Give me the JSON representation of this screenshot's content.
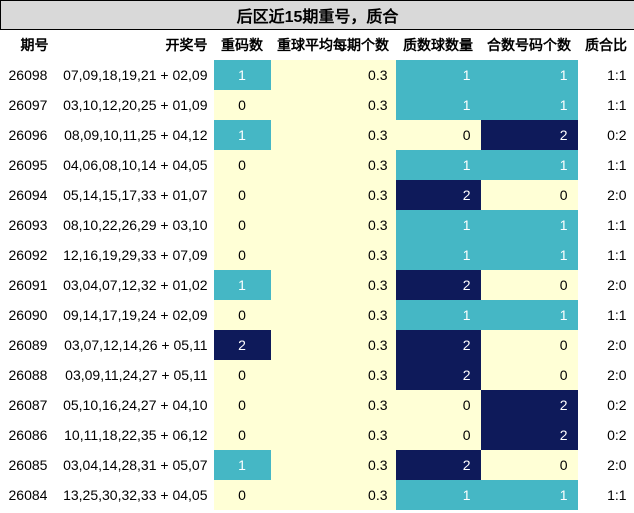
{
  "title": "后区近15期重号，质合",
  "headers": {
    "issue": "期号",
    "draw": "开奖号",
    "repeat": "重码数",
    "avg": "重球平均每期个数",
    "prime": "质数球数量",
    "composite": "合数号码个数",
    "ratio": "质合比"
  },
  "colors": {
    "teal": "#45b7c5",
    "navy": "#0e1a5a",
    "yellow": "#ffffd6",
    "header_gray": "#d9d9d9"
  },
  "rows": [
    {
      "issue": "26098",
      "draw": "07,09,18,19,21 + 02,09",
      "repeat": "1",
      "avg": "0.3",
      "prime": "1",
      "composite": "1",
      "ratio": "1:1"
    },
    {
      "issue": "26097",
      "draw": "03,10,12,20,25 + 01,09",
      "repeat": "0",
      "avg": "0.3",
      "prime": "1",
      "composite": "1",
      "ratio": "1:1"
    },
    {
      "issue": "26096",
      "draw": "08,09,10,11,25 + 04,12",
      "repeat": "1",
      "avg": "0.3",
      "prime": "0",
      "composite": "2",
      "ratio": "0:2"
    },
    {
      "issue": "26095",
      "draw": "04,06,08,10,14 + 04,05",
      "repeat": "0",
      "avg": "0.3",
      "prime": "1",
      "composite": "1",
      "ratio": "1:1"
    },
    {
      "issue": "26094",
      "draw": "05,14,15,17,33 + 01,07",
      "repeat": "0",
      "avg": "0.3",
      "prime": "2",
      "composite": "0",
      "ratio": "2:0"
    },
    {
      "issue": "26093",
      "draw": "08,10,22,26,29 + 03,10",
      "repeat": "0",
      "avg": "0.3",
      "prime": "1",
      "composite": "1",
      "ratio": "1:1"
    },
    {
      "issue": "26092",
      "draw": "12,16,19,29,33 + 07,09",
      "repeat": "0",
      "avg": "0.3",
      "prime": "1",
      "composite": "1",
      "ratio": "1:1"
    },
    {
      "issue": "26091",
      "draw": "03,04,07,12,32 + 01,02",
      "repeat": "1",
      "avg": "0.3",
      "prime": "2",
      "composite": "0",
      "ratio": "2:0"
    },
    {
      "issue": "26090",
      "draw": "09,14,17,19,24 + 02,09",
      "repeat": "0",
      "avg": "0.3",
      "prime": "1",
      "composite": "1",
      "ratio": "1:1"
    },
    {
      "issue": "26089",
      "draw": "03,07,12,14,26 + 05,11",
      "repeat": "2",
      "avg": "0.3",
      "prime": "2",
      "composite": "0",
      "ratio": "2:0"
    },
    {
      "issue": "26088",
      "draw": "03,09,11,24,27 + 05,11",
      "repeat": "0",
      "avg": "0.3",
      "prime": "2",
      "composite": "0",
      "ratio": "2:0"
    },
    {
      "issue": "26087",
      "draw": "05,10,16,24,27 + 04,10",
      "repeat": "0",
      "avg": "0.3",
      "prime": "0",
      "composite": "2",
      "ratio": "0:2"
    },
    {
      "issue": "26086",
      "draw": "10,11,18,22,35 + 06,12",
      "repeat": "0",
      "avg": "0.3",
      "prime": "0",
      "composite": "2",
      "ratio": "0:2"
    },
    {
      "issue": "26085",
      "draw": "03,04,14,28,31 + 05,07",
      "repeat": "1",
      "avg": "0.3",
      "prime": "2",
      "composite": "0",
      "ratio": "2:0"
    },
    {
      "issue": "26084",
      "draw": "13,25,30,32,33 + 04,05",
      "repeat": "0",
      "avg": "0.3",
      "prime": "1",
      "composite": "1",
      "ratio": "1:1"
    }
  ]
}
